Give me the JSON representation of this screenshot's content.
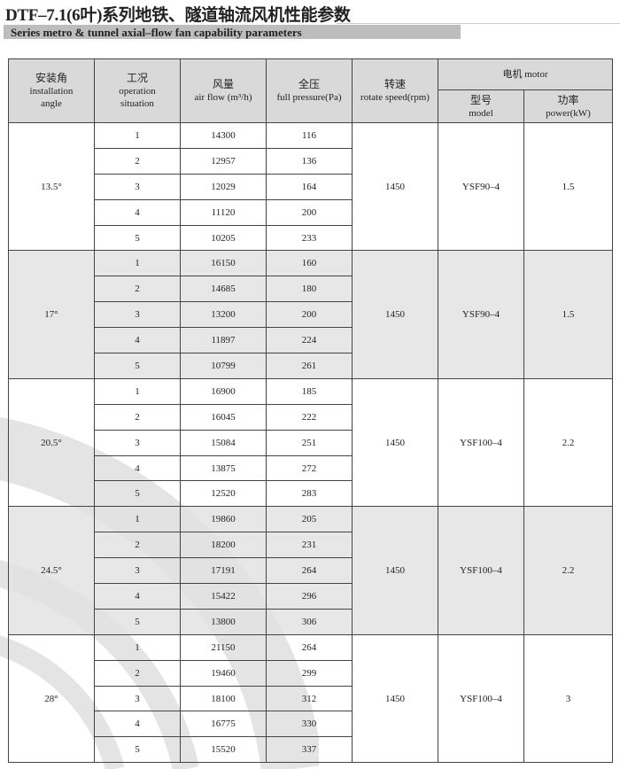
{
  "title": "DTF–7.1(6叶)系列地铁、隧道轴流风机性能参数",
  "subtitle": "Series metro & tunnel axial–flow fan capability parameters",
  "headers": {
    "angle_zh": "安装角",
    "angle_en1": "installation",
    "angle_en2": "angle",
    "op_zh": "工况",
    "op_en1": "operation",
    "op_en2": "situation",
    "flow_zh": "风量",
    "flow_en": "air flow (m³/h)",
    "pressure_zh": "全压",
    "pressure_en": "full pressure(Pa)",
    "speed_zh": "转速",
    "speed_en": "rotate speed(rpm)",
    "motor": "电机 motor",
    "model_zh": "型号",
    "model_en": "model",
    "power_zh": "功率",
    "power_en": "power(kW)"
  },
  "groups": [
    {
      "angle": "13.5°",
      "speed": "1450",
      "model": "YSF90–4",
      "power": "1.5",
      "rows": [
        [
          "1",
          "14300",
          "116"
        ],
        [
          "2",
          "12957",
          "136"
        ],
        [
          "3",
          "12029",
          "164"
        ],
        [
          "4",
          "11120",
          "200"
        ],
        [
          "5",
          "10205",
          "233"
        ]
      ]
    },
    {
      "angle": "17°",
      "speed": "1450",
      "model": "YSF90–4",
      "power": "1.5",
      "rows": [
        [
          "1",
          "16150",
          "160"
        ],
        [
          "2",
          "14685",
          "180"
        ],
        [
          "3",
          "13200",
          "200"
        ],
        [
          "4",
          "11897",
          "224"
        ],
        [
          "5",
          "10799",
          "261"
        ]
      ]
    },
    {
      "angle": "20.5°",
      "speed": "1450",
      "model": "YSF100–4",
      "power": "2.2",
      "rows": [
        [
          "1",
          "16900",
          "185"
        ],
        [
          "2",
          "16045",
          "222"
        ],
        [
          "3",
          "15084",
          "251"
        ],
        [
          "4",
          "13875",
          "272"
        ],
        [
          "5",
          "12520",
          "283"
        ]
      ]
    },
    {
      "angle": "24.5°",
      "speed": "1450",
      "model": "YSF100–4",
      "power": "2.2",
      "rows": [
        [
          "1",
          "19860",
          "205"
        ],
        [
          "2",
          "18200",
          "231"
        ],
        [
          "3",
          "17191",
          "264"
        ],
        [
          "4",
          "15422",
          "296"
        ],
        [
          "5",
          "13800",
          "306"
        ]
      ]
    },
    {
      "angle": "28°",
      "speed": "1450",
      "model": "YSF100–4",
      "power": "3",
      "rows": [
        [
          "1",
          "21150",
          "264"
        ],
        [
          "2",
          "19460",
          "299"
        ],
        [
          "3",
          "18100",
          "312"
        ],
        [
          "4",
          "16775",
          "330"
        ],
        [
          "5",
          "15520",
          "337"
        ]
      ]
    }
  ]
}
